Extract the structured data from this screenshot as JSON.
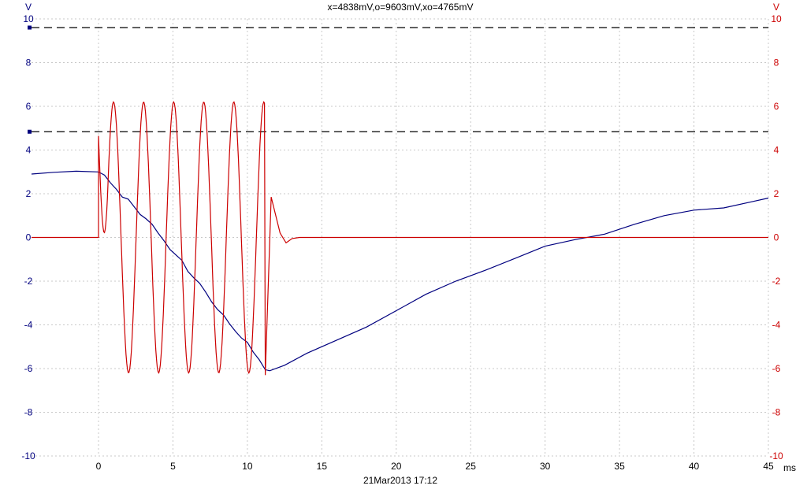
{
  "window": {
    "cursor_readout": "x=4838mV,o=9603mV,xo=4765mV",
    "timestamp": "21Mar2013  17:12"
  },
  "colors": {
    "left_axis": "#00007f",
    "right_axis": "#cc0000",
    "grid": "#c8c8c8",
    "cursor": "#000000"
  },
  "chart_data": {
    "type": "line",
    "title": "x=4838mV,o=9603mV,xo=4765mV",
    "xlabel": "ms",
    "ylabel_left": "V",
    "ylabel_right": "V",
    "x_range": [
      -4.5,
      45
    ],
    "ylim": [
      -10,
      10
    ],
    "x_ticks": [
      0,
      5,
      10,
      15,
      20,
      25,
      30,
      35,
      40,
      45
    ],
    "x_tick_labels": [
      "0",
      "5",
      "10",
      "15",
      "20",
      "25",
      "30",
      "35",
      "40",
      "45"
    ],
    "y_ticks": [
      10,
      8,
      6,
      4,
      2,
      0,
      -2,
      -4,
      -6,
      -8,
      -10
    ],
    "y_tick_labels": [
      "10",
      "8",
      "6",
      "4",
      "2",
      "0",
      "-2",
      "-4",
      "-6",
      "-8",
      "-10"
    ],
    "grid": true,
    "cursors": [
      {
        "name": "o",
        "value_v": 9.603
      },
      {
        "name": "x",
        "value_v": 4.838
      }
    ],
    "series": [
      {
        "color": "#00007f",
        "points": [
          [
            -4.5,
            2.9
          ],
          [
            -3,
            2.98
          ],
          [
            -1.5,
            3.03
          ],
          [
            0,
            3.0
          ],
          [
            0.4,
            2.85
          ],
          [
            0.8,
            2.5
          ],
          [
            1.2,
            2.2
          ],
          [
            1.6,
            1.85
          ],
          [
            2.0,
            1.75
          ],
          [
            2.4,
            1.4
          ],
          [
            2.8,
            1.05
          ],
          [
            3.2,
            0.85
          ],
          [
            3.6,
            0.6
          ],
          [
            4.0,
            0.2
          ],
          [
            4.4,
            -0.15
          ],
          [
            4.8,
            -0.55
          ],
          [
            5.2,
            -0.8
          ],
          [
            5.6,
            -1.05
          ],
          [
            6.0,
            -1.55
          ],
          [
            6.4,
            -1.85
          ],
          [
            6.8,
            -2.1
          ],
          [
            7.2,
            -2.5
          ],
          [
            7.6,
            -2.95
          ],
          [
            8.0,
            -3.3
          ],
          [
            8.4,
            -3.55
          ],
          [
            8.8,
            -3.95
          ],
          [
            9.2,
            -4.3
          ],
          [
            9.6,
            -4.6
          ],
          [
            10.0,
            -4.8
          ],
          [
            10.4,
            -5.25
          ],
          [
            10.8,
            -5.6
          ],
          [
            11.2,
            -6.05
          ],
          [
            11.5,
            -6.1
          ],
          [
            12.5,
            -5.85
          ],
          [
            14,
            -5.3
          ],
          [
            16,
            -4.7
          ],
          [
            18,
            -4.1
          ],
          [
            20,
            -3.35
          ],
          [
            22,
            -2.6
          ],
          [
            24,
            -2.0
          ],
          [
            26,
            -1.5
          ],
          [
            28,
            -0.95
          ],
          [
            30,
            -0.4
          ],
          [
            32,
            -0.1
          ],
          [
            34,
            0.15
          ],
          [
            36,
            0.6
          ],
          [
            38,
            1.0
          ],
          [
            40,
            1.25
          ],
          [
            42,
            1.35
          ],
          [
            44,
            1.65
          ],
          [
            45,
            1.8
          ]
        ]
      },
      {
        "color": "#cc0000",
        "osc_start_ms": 0,
        "osc_end_ms": 11.2,
        "osc_period_ms": 2.02,
        "osc_amplitude_v": 6.2,
        "initial_spike_v": 4.65,
        "final_spike_v": -6.3,
        "ringing_peak_v": 1.85,
        "ringing_peak_ms": 11.6,
        "ringing_trough_v": -0.25,
        "settle_ms": 13.5
      }
    ]
  }
}
